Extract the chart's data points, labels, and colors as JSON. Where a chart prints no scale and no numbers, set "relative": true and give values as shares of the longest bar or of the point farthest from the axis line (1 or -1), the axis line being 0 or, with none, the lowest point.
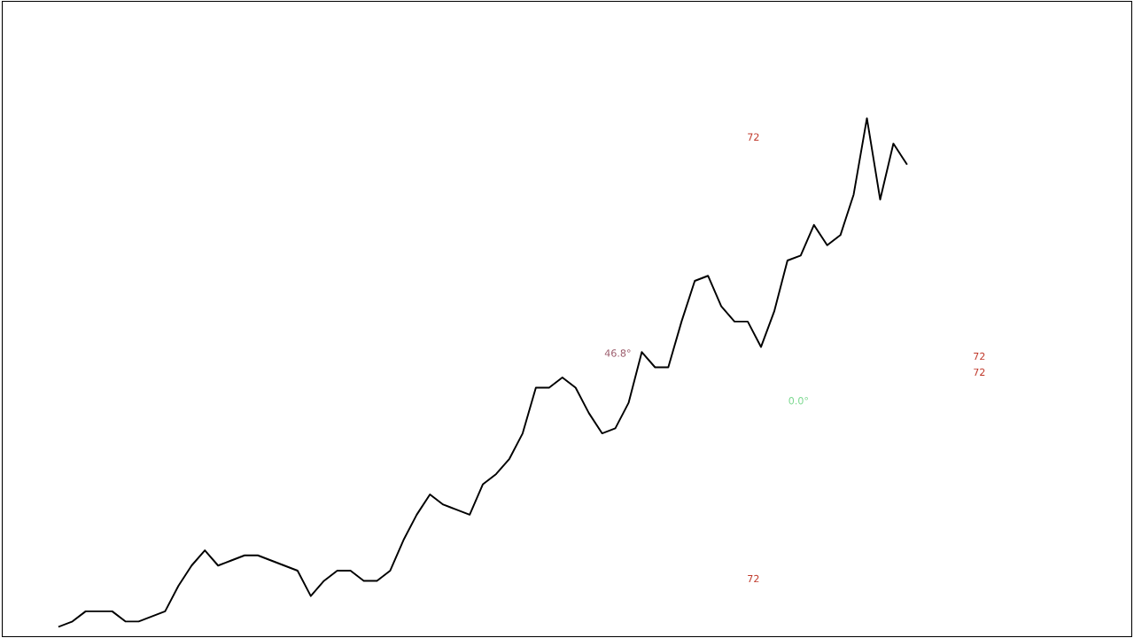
{
  "chart_data": {
    "type": "line",
    "relative": true,
    "categories": [
      null,
      null,
      null,
      null,
      null,
      null,
      null,
      null,
      null,
      null,
      null,
      null,
      null,
      null,
      null,
      null,
      null,
      null,
      null,
      null,
      null,
      null,
      null,
      null,
      null,
      null,
      null,
      null,
      null,
      null,
      null,
      null,
      null,
      null,
      null,
      null,
      null,
      null,
      null,
      null,
      null,
      null,
      null,
      null,
      null,
      null,
      null,
      null,
      null,
      null,
      null,
      null,
      null,
      null,
      null,
      null,
      null,
      null,
      null,
      null,
      null,
      null,
      null,
      null,
      null
    ],
    "series": [
      {
        "color": "#000000",
        "values": [
          0,
          0.01,
          0.03,
          0.03,
          0.03,
          0.01,
          0.01,
          0.02,
          0.03,
          0.08,
          0.12,
          0.15,
          0.12,
          0.13,
          0.14,
          0.14,
          0.13,
          0.12,
          0.11,
          0.06,
          0.09,
          0.11,
          0.11,
          0.09,
          0.09,
          0.11,
          0.17,
          0.22,
          0.26,
          0.24,
          0.23,
          0.22,
          0.28,
          0.3,
          0.33,
          0.38,
          0.47,
          0.47,
          0.49,
          0.47,
          0.42,
          0.38,
          0.39,
          0.44,
          0.54,
          0.51,
          0.51,
          0.6,
          0.68,
          0.69,
          0.63,
          0.6,
          0.6,
          0.55,
          0.62,
          0.72,
          0.73,
          0.79,
          0.75,
          0.77,
          0.85,
          1,
          0.84,
          0.95,
          0.91
        ]
      }
    ],
    "annotations": [
      "72",
      "72",
      "72",
      "72",
      "46.8°",
      "0.0°"
    ]
  }
}
